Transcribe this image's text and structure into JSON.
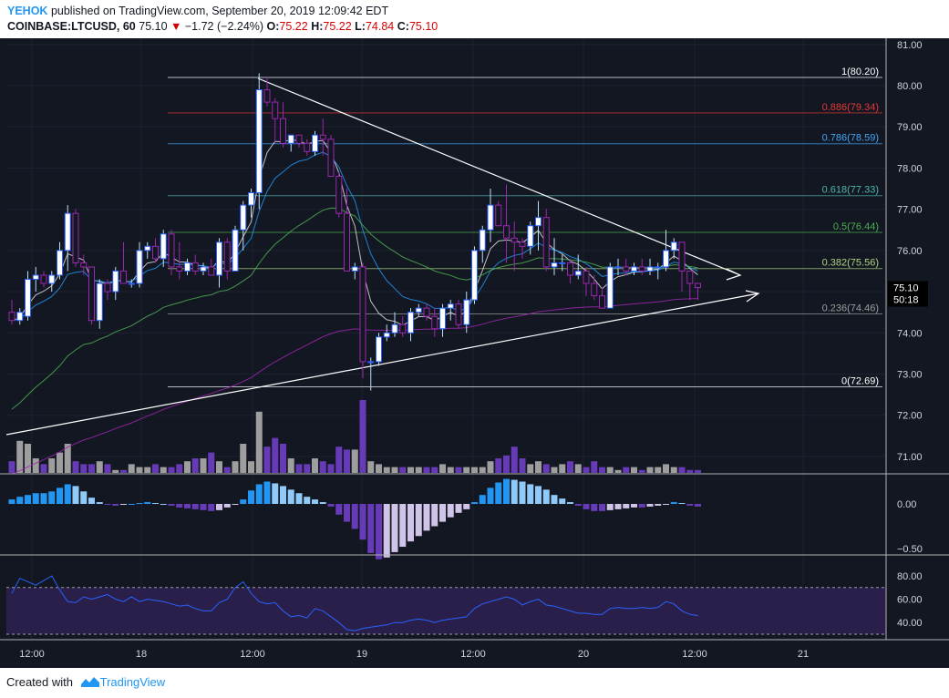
{
  "header": {
    "author": "YEHOK",
    "published_text": "published on TradingView.com, September 20, 2019 12:09:42 EDT",
    "symbol": "COINBASE:LTCUSD, 60",
    "last": "75.10",
    "change_arrow": "▼",
    "change": "−1.72 (−2.24%)",
    "ohlc": {
      "o_label": "O:",
      "o": "75.22",
      "h_label": "H:",
      "h": "75.22",
      "l_label": "L:",
      "l": "74.84",
      "c_label": "C:",
      "c": "75.10"
    }
  },
  "footer": {
    "created_with": "Created with",
    "brand": "TradingView"
  },
  "colors": {
    "background": "#131722",
    "up_candle": "#ffffff",
    "down_candle": "#9c27b0",
    "trendline": "#ffffff",
    "ema_fast": "#e0e0e0",
    "ema_mid": "#2196f3",
    "ema_slow": "#4caf50",
    "ema_long": "#9c27b0",
    "volume_up": "#9e9e9e",
    "volume_down": "#673ab7",
    "hist_pos": "#2196f3",
    "hist_pos_fading": "#90caf9",
    "hist_neg": "#673ab7",
    "hist_neg_fading": "#d1c4e9",
    "rsi_line": "#2962ff",
    "rsi_band": "#2a1f4a",
    "price_label_bg": "#000000"
  },
  "chart_data": {
    "type": "candlestick",
    "price_axis": {
      "ticks": [
        "81.00",
        "80.00",
        "79.00",
        "78.00",
        "77.00",
        "76.00",
        "75.00",
        "74.00",
        "73.00",
        "72.00",
        "71.00"
      ],
      "ylim": [
        70.6,
        81.15
      ],
      "current_price": "75.10",
      "countdown": "50:18"
    },
    "time_axis": {
      "ticks": [
        "12:00",
        "18",
        "12:00",
        "19",
        "12:00",
        "20",
        "12:00",
        "21"
      ]
    },
    "fib_levels": [
      {
        "label": "1(80.20)",
        "value": 80.2,
        "color": "#ffffff"
      },
      {
        "label": "0.886(79.34)",
        "value": 79.34,
        "color": "#e53935"
      },
      {
        "label": "0.786(78.59)",
        "value": 78.59,
        "color": "#42a5f5"
      },
      {
        "label": "0.618(77.33)",
        "value": 77.33,
        "color": "#4db6ac"
      },
      {
        "label": "0.5(76.44)",
        "value": 76.44,
        "color": "#4caf50"
      },
      {
        "label": "0.382(75.56)",
        "value": 75.56,
        "color": "#aed581"
      },
      {
        "label": "0.236(74.46)",
        "value": 74.46,
        "color": "#9e9e9e"
      },
      {
        "label": "0(72.69)",
        "value": 72.69,
        "color": "#ffffff"
      }
    ],
    "candles_ohlc": [
      [
        74.5,
        74.8,
        74.2,
        74.3
      ],
      [
        74.3,
        74.6,
        74.2,
        74.5
      ],
      [
        74.4,
        75.5,
        74.3,
        75.3
      ],
      [
        75.3,
        75.6,
        75.0,
        75.4
      ],
      [
        75.4,
        75.5,
        75.1,
        75.2
      ],
      [
        75.2,
        75.5,
        75.0,
        75.4
      ],
      [
        75.4,
        76.2,
        75.3,
        76.0
      ],
      [
        76.0,
        77.1,
        75.5,
        76.9
      ],
      [
        76.9,
        77.0,
        75.6,
        75.7
      ],
      [
        75.7,
        75.9,
        75.4,
        75.6
      ],
      [
        75.6,
        75.6,
        74.2,
        74.3
      ],
      [
        74.3,
        75.3,
        74.1,
        75.2
      ],
      [
        75.2,
        75.3,
        74.8,
        75.0
      ],
      [
        75.0,
        75.6,
        74.8,
        75.5
      ],
      [
        75.5,
        76.2,
        75.3,
        75.2
      ],
      [
        75.2,
        75.3,
        75.1,
        75.2
      ],
      [
        75.2,
        76.2,
        75.1,
        76.0
      ],
      [
        76.0,
        76.2,
        75.8,
        76.1
      ],
      [
        76.1,
        76.3,
        75.7,
        75.8
      ],
      [
        75.8,
        76.5,
        75.6,
        76.4
      ],
      [
        76.4,
        76.5,
        75.4,
        75.6
      ],
      [
        75.6,
        76.2,
        75.3,
        75.5
      ],
      [
        75.5,
        75.8,
        75.4,
        75.7
      ],
      [
        75.7,
        75.9,
        75.4,
        75.5
      ],
      [
        75.5,
        75.7,
        75.4,
        75.6
      ],
      [
        75.6,
        75.8,
        75.4,
        75.4
      ],
      [
        75.4,
        76.3,
        75.1,
        76.2
      ],
      [
        76.2,
        76.3,
        75.3,
        75.5
      ],
      [
        75.5,
        76.6,
        75.5,
        76.5
      ],
      [
        76.5,
        77.2,
        76.0,
        77.1
      ],
      [
        77.1,
        77.5,
        76.8,
        77.4
      ],
      [
        77.4,
        80.3,
        77.0,
        79.9
      ],
      [
        79.9,
        80.2,
        79.5,
        79.6
      ],
      [
        79.6,
        79.7,
        78.6,
        79.2
      ],
      [
        79.2,
        79.6,
        78.5,
        78.6
      ],
      [
        78.6,
        78.8,
        78.4,
        78.8
      ],
      [
        78.8,
        78.8,
        78.5,
        78.6
      ],
      [
        78.6,
        78.7,
        78.3,
        78.4
      ],
      [
        78.4,
        78.9,
        78.3,
        78.8
      ],
      [
        78.8,
        79.2,
        78.3,
        78.7
      ],
      [
        78.7,
        78.8,
        77.8,
        77.8
      ],
      [
        77.8,
        77.9,
        76.8,
        76.9
      ],
      [
        76.9,
        77.5,
        75.5,
        75.5
      ],
      [
        75.5,
        75.7,
        75.3,
        75.6
      ],
      [
        75.6,
        75.7,
        72.9,
        73.3
      ],
      [
        73.3,
        73.4,
        72.6,
        73.3
      ],
      [
        73.3,
        74.0,
        73.2,
        73.9
      ],
      [
        73.9,
        74.2,
        73.8,
        74.0
      ],
      [
        74.0,
        74.5,
        73.9,
        74.2
      ],
      [
        74.2,
        74.4,
        73.9,
        74.0
      ],
      [
        74.0,
        74.6,
        73.8,
        74.5
      ],
      [
        74.5,
        74.7,
        74.4,
        74.6
      ],
      [
        74.6,
        74.7,
        74.3,
        74.4
      ],
      [
        74.4,
        74.6,
        73.9,
        74.1
      ],
      [
        74.1,
        74.7,
        73.9,
        74.6
      ],
      [
        74.6,
        74.8,
        74.3,
        74.7
      ],
      [
        74.7,
        74.8,
        74.1,
        74.2
      ],
      [
        74.2,
        75.0,
        74.0,
        74.8
      ],
      [
        74.8,
        76.1,
        74.7,
        76.0
      ],
      [
        76.0,
        76.6,
        75.7,
        76.5
      ],
      [
        76.5,
        77.5,
        76.2,
        77.1
      ],
      [
        77.1,
        77.2,
        76.6,
        76.6
      ],
      [
        76.6,
        77.6,
        75.7,
        76.3
      ],
      [
        76.3,
        76.7,
        75.5,
        76.2
      ],
      [
        76.2,
        76.3,
        75.8,
        76.1
      ],
      [
        76.1,
        76.7,
        75.9,
        76.6
      ],
      [
        76.6,
        77.2,
        76.0,
        76.8
      ],
      [
        76.8,
        77.0,
        75.5,
        75.6
      ],
      [
        75.6,
        76.3,
        75.4,
        75.7
      ],
      [
        75.7,
        75.9,
        75.5,
        75.7
      ],
      [
        75.7,
        75.8,
        75.2,
        75.4
      ],
      [
        75.4,
        75.9,
        75.3,
        75.5
      ],
      [
        75.5,
        75.6,
        74.9,
        75.2
      ],
      [
        75.2,
        75.4,
        74.8,
        74.9
      ],
      [
        74.9,
        75.1,
        74.6,
        74.6
      ],
      [
        74.6,
        75.7,
        74.6,
        75.6
      ],
      [
        75.6,
        75.8,
        75.4,
        75.6
      ],
      [
        75.6,
        75.8,
        75.4,
        75.5
      ],
      [
        75.5,
        75.7,
        75.4,
        75.6
      ],
      [
        75.6,
        75.8,
        75.4,
        75.5
      ],
      [
        75.5,
        75.8,
        75.4,
        75.6
      ],
      [
        75.6,
        75.7,
        75.3,
        75.6
      ],
      [
        75.6,
        76.5,
        75.5,
        76.0
      ],
      [
        76.0,
        76.3,
        75.8,
        76.2
      ],
      [
        76.2,
        76.2,
        75.0,
        75.5
      ],
      [
        75.5,
        75.5,
        74.8,
        75.2
      ],
      [
        75.2,
        75.2,
        74.8,
        75.1
      ]
    ],
    "volume": [
      4,
      11,
      10,
      5,
      3,
      5,
      7,
      10,
      4,
      3,
      3,
      4,
      3,
      1,
      1,
      3,
      2,
      2,
      3,
      2,
      2,
      3,
      4,
      5,
      5,
      7,
      4,
      2,
      4,
      10,
      4,
      21,
      9,
      12,
      10,
      5,
      3,
      3,
      5,
      4,
      3,
      9,
      8,
      8,
      25,
      4,
      3,
      2,
      2,
      2,
      2,
      2,
      2,
      2,
      3,
      2,
      2,
      2,
      2,
      2,
      4,
      5,
      6,
      9,
      5,
      3,
      4,
      3,
      2,
      3,
      4,
      3,
      2,
      4,
      2,
      2,
      1,
      2,
      2,
      1,
      2,
      2,
      3,
      2,
      2,
      1,
      1
    ],
    "histogram": [
      0.05,
      0.08,
      0.1,
      0.12,
      0.12,
      0.14,
      0.18,
      0.22,
      0.2,
      0.14,
      0.07,
      0.02,
      -0.01,
      -0.02,
      -0.01,
      0.0,
      0.01,
      0.02,
      0.01,
      0.0,
      -0.02,
      -0.04,
      -0.05,
      -0.06,
      -0.07,
      -0.08,
      -0.07,
      -0.04,
      -0.01,
      0.05,
      0.15,
      0.22,
      0.25,
      0.23,
      0.2,
      0.16,
      0.12,
      0.08,
      0.05,
      0.02,
      -0.03,
      -0.12,
      -0.2,
      -0.28,
      -0.4,
      -0.55,
      -0.62,
      -0.6,
      -0.54,
      -0.48,
      -0.42,
      -0.36,
      -0.3,
      -0.25,
      -0.2,
      -0.15,
      -0.1,
      -0.06,
      0.02,
      0.1,
      0.18,
      0.24,
      0.28,
      0.27,
      0.25,
      0.22,
      0.2,
      0.16,
      0.1,
      0.06,
      0.02,
      -0.02,
      -0.06,
      -0.08,
      -0.08,
      -0.07,
      -0.06,
      -0.05,
      -0.04,
      -0.04,
      -0.03,
      -0.02,
      -0.01,
      0.02,
      0.01,
      -0.02,
      -0.03
    ],
    "rsi": [
      65,
      78,
      75,
      72,
      76,
      80,
      68,
      58,
      57,
      62,
      60,
      62,
      64,
      60,
      58,
      62,
      58,
      60,
      59,
      58,
      56,
      54,
      55,
      52,
      50,
      50,
      57,
      60,
      70,
      75,
      65,
      58,
      56,
      57,
      50,
      45,
      46,
      44,
      52,
      50,
      45,
      40,
      34,
      33,
      35,
      36,
      37,
      38,
      40,
      40,
      42,
      43,
      42,
      40,
      42,
      43,
      44,
      45,
      52,
      56,
      58,
      60,
      62,
      60,
      55,
      58,
      60,
      55,
      54,
      52,
      50,
      48,
      48,
      47,
      47,
      52,
      53,
      52,
      52,
      53,
      52,
      53,
      58,
      56,
      50,
      47,
      46
    ],
    "rsi_axis": {
      "ticks": [
        "80.00",
        "60.00",
        "40.00"
      ]
    },
    "macd_axis": {
      "ticks": [
        "0.00",
        "−0.50"
      ]
    }
  }
}
